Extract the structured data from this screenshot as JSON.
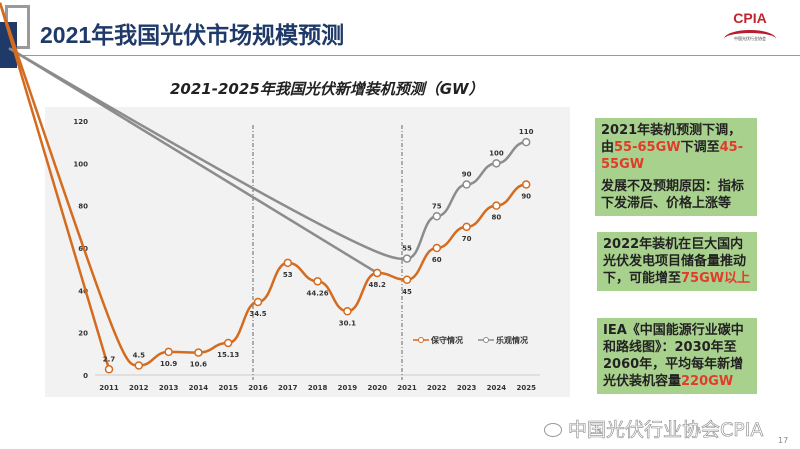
{
  "header": {
    "title": "2021年我国光伏市场规模预测",
    "logo_text": "CPIA",
    "logo_subtext": "中国光伏行业协会"
  },
  "chart_data": {
    "type": "line",
    "title": "2021-2025年我国光伏新增装机预测（GW）",
    "x": [
      "2011",
      "2012",
      "2013",
      "2014",
      "2015",
      "2016",
      "2017",
      "2018",
      "2019",
      "2020",
      "2021",
      "2022",
      "2023",
      "2024",
      "2025"
    ],
    "ylim": [
      0,
      120
    ],
    "yticks": [
      0,
      20,
      40,
      60,
      80,
      100,
      120
    ],
    "grid": false,
    "legend_position": "bottom-right",
    "dividers_at": [
      "2016",
      "2021"
    ],
    "series": [
      {
        "name": "保守情况",
        "color": "#d46b1e",
        "values": [
          2.7,
          4.5,
          10.9,
          10.6,
          15.13,
          34.5,
          53,
          44.26,
          30.1,
          48.2,
          45,
          60,
          70,
          80,
          90
        ],
        "labels": [
          "2.7",
          "4.5",
          "10.9",
          "10.6",
          "15.13",
          "34.5",
          "53",
          "44.26",
          "30.1",
          "48.2",
          "45",
          "60",
          "70",
          "80",
          "90"
        ]
      },
      {
        "name": "乐观情况",
        "color": "#8c8c8c",
        "values": [
          null,
          null,
          null,
          null,
          null,
          null,
          null,
          null,
          null,
          48.2,
          55,
          75,
          90,
          100,
          110
        ],
        "labels": [
          "",
          "",
          "",
          "",
          "",
          "",
          "",
          "",
          "",
          "",
          "55",
          "75",
          "90",
          "100",
          "110"
        ]
      }
    ]
  },
  "notes": [
    {
      "parts": [
        {
          "t": "2021年装机预测下调，由"
        },
        {
          "t": "55-65GW",
          "red": true
        },
        {
          "t": "下调至"
        },
        {
          "t": "45-55GW",
          "red": true
        }
      ],
      "extra": "发展不及预期原因：指标下发滞后、价格上涨等"
    },
    {
      "parts": [
        {
          "t": "2022年装机在巨大国内光伏发电项目储备量推动下，可能增至"
        },
        {
          "t": "75GW以上",
          "red": true
        }
      ]
    },
    {
      "parts": [
        {
          "t": "IEA《中国能源行业碳中和路线图》：2030年至2060年，平均每年新增光伏装机容量"
        },
        {
          "t": "220GW",
          "red": true
        }
      ]
    }
  ],
  "watermark": "中国光伏行业协会CPIA",
  "page_number": "17"
}
